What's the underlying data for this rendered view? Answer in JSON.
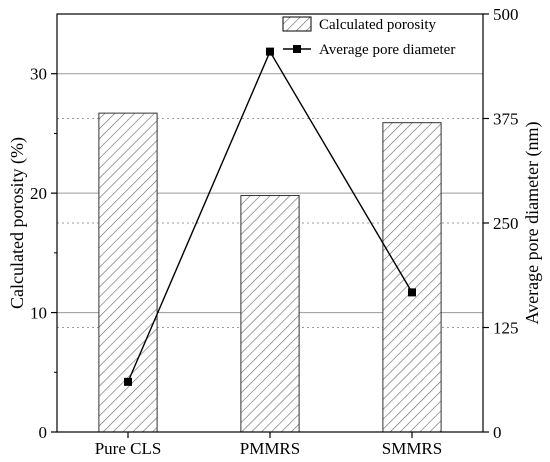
{
  "chart_data": {
    "type": "bar",
    "categories": [
      "Pure CLS",
      "PMMRS",
      "SMMRS"
    ],
    "series": [
      {
        "name": "Calculated porosity",
        "type": "bar",
        "axis": "left",
        "values": [
          26.7,
          19.8,
          25.9
        ],
        "pattern": "diagonal-hatch"
      },
      {
        "name": "Average pore diameter",
        "type": "line",
        "axis": "right",
        "marker": "square",
        "values": [
          60,
          455,
          167
        ]
      }
    ],
    "ylabel": "Calculated porosity (%)",
    "y2label": "Average pore diameter (nm)",
    "ylim": [
      0,
      35
    ],
    "y2lim": [
      0,
      500
    ],
    "yticks": [
      0,
      10,
      20,
      30
    ],
    "y2ticks": [
      0,
      125,
      250,
      375,
      500
    ],
    "grid": true,
    "legend_position": "top-right",
    "colors": {
      "bar_fill": "#ffffff",
      "hatch": "#666666",
      "line": "#000000",
      "grid": "#9a9a9a"
    }
  }
}
